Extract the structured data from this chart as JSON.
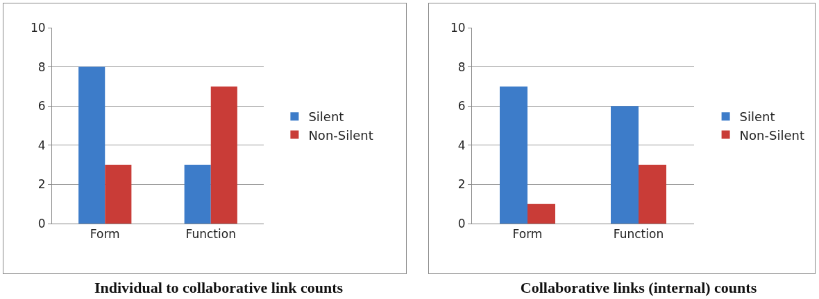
{
  "chart_data": [
    {
      "type": "bar",
      "title": "Individual to collaborative link counts",
      "categories": [
        "Form",
        "Function"
      ],
      "series": [
        {
          "name": "Silent",
          "color": "#3d7cc9",
          "values": [
            8,
            3
          ]
        },
        {
          "name": "Non-Silent",
          "color": "#c93c37",
          "values": [
            3,
            7
          ]
        }
      ],
      "ylim": [
        0,
        10
      ],
      "yticks": [
        0,
        2,
        4,
        6,
        8,
        10
      ],
      "grid": "y",
      "legend": "right"
    },
    {
      "type": "bar",
      "title": "Collaborative links (internal) counts",
      "categories": [
        "Form",
        "Function"
      ],
      "series": [
        {
          "name": "Silent",
          "color": "#3d7cc9",
          "values": [
            7,
            6
          ]
        },
        {
          "name": "Non-Silent",
          "color": "#c93c37",
          "values": [
            1,
            3
          ]
        }
      ],
      "ylim": [
        0,
        10
      ],
      "yticks": [
        0,
        2,
        4,
        6,
        8,
        10
      ],
      "grid": "y",
      "legend": "right"
    }
  ]
}
